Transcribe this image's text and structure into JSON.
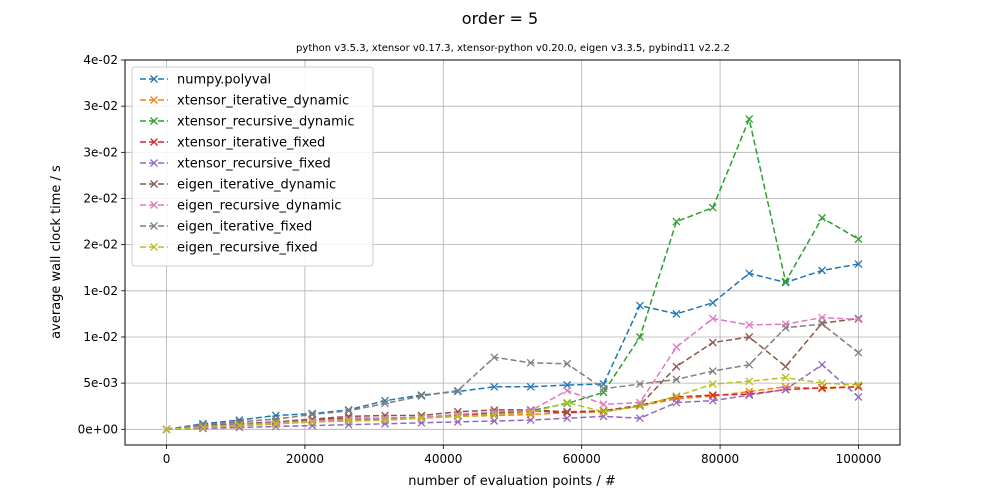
{
  "chart_data": {
    "type": "line",
    "title": "order = 5",
    "subtitle": "python v3.5.3, xtensor v0.17.3, xtensor-python v0.20.0, eigen v3.3.5, pybind11 v2.2.2",
    "xlabel": "number of evaluation points / #",
    "ylabel": "average wall clock time / s",
    "xlim": [
      -6000,
      106000
    ],
    "ylim": [
      -0.0017,
      0.04
    ],
    "grid": true,
    "legend_position": "upper-left",
    "x_ticks": [
      0,
      20000,
      40000,
      60000,
      80000,
      100000
    ],
    "x_tick_labels": [
      "0",
      "20000",
      "40000",
      "60000",
      "80000",
      "100000"
    ],
    "y_ticks": [
      0,
      0.005,
      0.01,
      0.015,
      0.02,
      0.025,
      0.03,
      0.035,
      0.04
    ],
    "y_tick_labels": [
      "0e+00",
      "5e-03",
      "1e-02",
      "1e-02",
      "2e-02",
      "2e-02",
      "3e-02",
      "3e-02",
      "4e-02"
    ],
    "x": [
      0,
      5263,
      10526,
      15789,
      21053,
      26316,
      31579,
      36842,
      42105,
      47368,
      52632,
      57895,
      63158,
      68421,
      73684,
      78947,
      84211,
      89474,
      94737,
      100000
    ],
    "series": [
      {
        "name": "numpy.polyval",
        "color": "#1f77b4",
        "values": [
          0.0,
          0.0006,
          0.001,
          0.0015,
          0.0017,
          0.0021,
          0.0031,
          0.0037,
          0.0041,
          0.0046,
          0.0046,
          0.0048,
          0.0049,
          0.0134,
          0.0125,
          0.0137,
          0.0169,
          0.0159,
          0.0172,
          0.0179
        ]
      },
      {
        "name": "xtensor_iterative_dynamic",
        "color": "#ff7f0e",
        "values": [
          0.0,
          0.0001,
          0.0004,
          0.0006,
          0.0008,
          0.0009,
          0.001,
          0.0012,
          0.0014,
          0.0015,
          0.0016,
          0.0018,
          0.0019,
          0.0025,
          0.0033,
          0.0036,
          0.0041,
          0.0046,
          0.0044,
          0.0046
        ]
      },
      {
        "name": "xtensor_recursive_dynamic",
        "color": "#2ca02c",
        "values": [
          0.0,
          0.0002,
          0.0004,
          0.0006,
          0.0008,
          0.001,
          0.0011,
          0.0013,
          0.0015,
          0.0017,
          0.002,
          0.0028,
          0.004,
          0.01,
          0.0225,
          0.024,
          0.0336,
          0.016,
          0.0229,
          0.0206
        ]
      },
      {
        "name": "xtensor_iterative_fixed",
        "color": "#d62728",
        "values": [
          0.0,
          0.0003,
          0.0006,
          0.0008,
          0.001,
          0.0012,
          0.0012,
          0.0013,
          0.0015,
          0.0018,
          0.002,
          0.0018,
          0.002,
          0.0026,
          0.0035,
          0.0037,
          0.0038,
          0.0043,
          0.0045,
          0.0046
        ]
      },
      {
        "name": "xtensor_recursive_fixed",
        "color": "#9467bd",
        "values": [
          0.0,
          0.0001,
          0.0002,
          0.0003,
          0.0004,
          0.0005,
          0.0006,
          0.0007,
          0.0008,
          0.0009,
          0.001,
          0.0012,
          0.0014,
          0.0012,
          0.0029,
          0.0031,
          0.0037,
          0.0043,
          0.007,
          0.0035
        ]
      },
      {
        "name": "eigen_iterative_dynamic",
        "color": "#8c564b",
        "values": [
          0.0,
          0.0004,
          0.0006,
          0.0008,
          0.0011,
          0.0014,
          0.0015,
          0.0015,
          0.0019,
          0.0021,
          0.0021,
          0.0019,
          0.002,
          0.0026,
          0.0068,
          0.0094,
          0.01,
          0.0068,
          0.0115,
          0.012
        ]
      },
      {
        "name": "eigen_recursive_dynamic",
        "color": "#e377c2",
        "values": [
          0.0,
          0.0003,
          0.0005,
          0.0007,
          0.0009,
          0.0011,
          0.0012,
          0.0013,
          0.0016,
          0.0019,
          0.002,
          0.0042,
          0.0027,
          0.0029,
          0.0089,
          0.012,
          0.0113,
          0.0114,
          0.0121,
          0.0119
        ]
      },
      {
        "name": "eigen_iterative_fixed",
        "color": "#7f7f7f",
        "values": [
          0.0,
          0.0005,
          0.0008,
          0.0011,
          0.0016,
          0.002,
          0.0028,
          0.0036,
          0.0042,
          0.0078,
          0.0072,
          0.0071,
          0.0044,
          0.0049,
          0.0054,
          0.0063,
          0.007,
          0.011,
          0.0114,
          0.0083
        ]
      },
      {
        "name": "eigen_recursive_fixed",
        "color": "#bcbd22",
        "values": [
          0.0,
          0.0002,
          0.0004,
          0.0006,
          0.0008,
          0.0009,
          0.001,
          0.0012,
          0.0014,
          0.0016,
          0.0018,
          0.0029,
          0.0019,
          0.0025,
          0.0036,
          0.0049,
          0.0052,
          0.0056,
          0.005,
          0.0048
        ]
      }
    ]
  }
}
